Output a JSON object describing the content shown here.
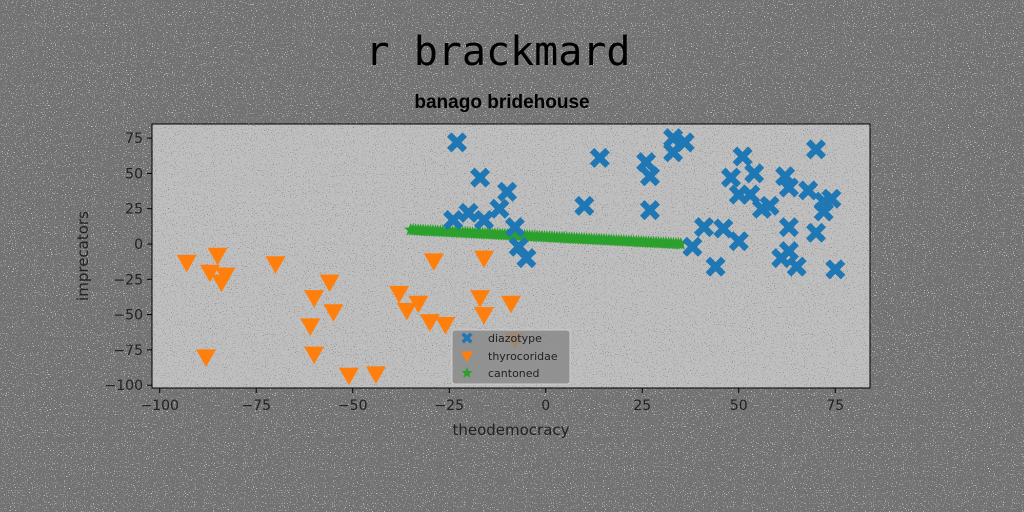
{
  "chart_data": {
    "type": "scatter",
    "suptitle": "r brackmard",
    "title": "banago bridehouse",
    "xlabel": "theodemocracy",
    "ylabel": "imprecators",
    "xlim": [
      -102,
      84
    ],
    "ylim": [
      -102,
      85
    ],
    "xticks": [
      -100,
      -75,
      -50,
      -25,
      0,
      25,
      50,
      75
    ],
    "yticks": [
      -100,
      -75,
      -50,
      -25,
      0,
      25,
      50,
      75
    ],
    "xtick_labels": [
      "−100",
      "−75",
      "−50",
      "−25",
      "0",
      "25",
      "50",
      "75"
    ],
    "ytick_labels": [
      "−100",
      "−75",
      "−50",
      "−25",
      "0",
      "25",
      "50",
      "75"
    ],
    "grid": false,
    "legend_position": "lower-center",
    "series": [
      {
        "name": "diazotype",
        "marker": "x-filled",
        "color": "#1f77b4",
        "points": [
          [
            -23,
            72
          ],
          [
            -20,
            22
          ],
          [
            -24,
            17
          ],
          [
            -17,
            47
          ],
          [
            -16,
            17
          ],
          [
            -12,
            25
          ],
          [
            -10,
            37
          ],
          [
            -8,
            12
          ],
          [
            -7,
            -2
          ],
          [
            -5,
            -10
          ],
          [
            10,
            27
          ],
          [
            14,
            61
          ],
          [
            26,
            58
          ],
          [
            27,
            48
          ],
          [
            27,
            24
          ],
          [
            33,
            75
          ],
          [
            33,
            65
          ],
          [
            36,
            72
          ],
          [
            38,
            -2
          ],
          [
            41,
            12
          ],
          [
            44,
            -16
          ],
          [
            46,
            11
          ],
          [
            48,
            47
          ],
          [
            50,
            35
          ],
          [
            50,
            2
          ],
          [
            51,
            62
          ],
          [
            53,
            35
          ],
          [
            54,
            50
          ],
          [
            56,
            25
          ],
          [
            58,
            27
          ],
          [
            61,
            -10
          ],
          [
            62,
            48
          ],
          [
            63,
            40
          ],
          [
            63,
            12
          ],
          [
            63,
            -5
          ],
          [
            65,
            -16
          ],
          [
            68,
            38
          ],
          [
            70,
            67
          ],
          [
            70,
            8
          ],
          [
            72,
            30
          ],
          [
            72,
            23
          ],
          [
            74,
            32
          ],
          [
            75,
            -18
          ]
        ]
      },
      {
        "name": "thyrocoridae",
        "marker": "triangle-down",
        "color": "#ff7f0e",
        "points": [
          [
            -93,
            -13
          ],
          [
            -88,
            -80
          ],
          [
            -87,
            -20
          ],
          [
            -85,
            -8
          ],
          [
            -84,
            -27
          ],
          [
            -83,
            -22
          ],
          [
            -70,
            -14
          ],
          [
            -61,
            -58
          ],
          [
            -60,
            -78
          ],
          [
            -60,
            -38
          ],
          [
            -56,
            -27
          ],
          [
            -55,
            -48
          ],
          [
            -51,
            -93
          ],
          [
            -44,
            -92
          ],
          [
            -38,
            -35
          ],
          [
            -36,
            -47
          ],
          [
            -33,
            -42
          ],
          [
            -30,
            -55
          ],
          [
            -29,
            -12
          ],
          [
            -26,
            -57
          ],
          [
            -17,
            -38
          ],
          [
            -16,
            -50
          ],
          [
            -16,
            -10
          ],
          [
            -9,
            -42
          ],
          [
            -8,
            -68
          ]
        ]
      },
      {
        "name": "cantoned",
        "marker": "star",
        "color": "#2ca02c",
        "line_from": [
          -35,
          10
        ],
        "line_to": [
          35,
          0
        ],
        "count": 110
      }
    ]
  }
}
